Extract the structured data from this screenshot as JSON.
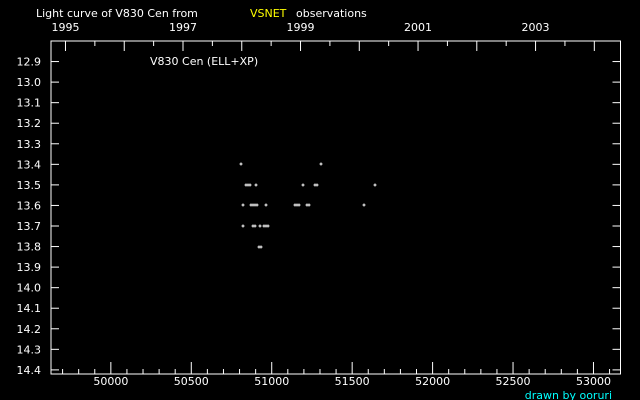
{
  "chart_data": {
    "type": "scatter",
    "title": {
      "prefix": "Light curve of V830 Cen from",
      "source": "VSNET",
      "suffix": "observations"
    },
    "annotation": "V830 Cen (ELL+XP)",
    "credit": "drawn by ooruri",
    "xlabel": "",
    "ylabel": "",
    "xlim": [
      49628,
      53168
    ],
    "ylim": [
      12.8,
      14.42
    ],
    "y_inverted": true,
    "x_ticks": [
      50000,
      50500,
      51000,
      51500,
      52000,
      52500,
      53000
    ],
    "x_tick_labels": [
      "50000",
      "50500",
      "51000",
      "51500",
      "52000",
      "52500",
      "53000"
    ],
    "top_year_labels": [
      "1995",
      "1997",
      "1999",
      "2001",
      "2003"
    ],
    "y_ticks": [
      12.9,
      13.0,
      13.1,
      13.2,
      13.3,
      13.4,
      13.5,
      13.6,
      13.7,
      13.8,
      13.9,
      14.0,
      14.1,
      14.2,
      14.3,
      14.4
    ],
    "y_tick_labels": [
      "12.9",
      "13.0",
      "13.1",
      "13.2",
      "13.3",
      "13.4",
      "13.5",
      "13.6",
      "13.7",
      "13.8",
      "13.9",
      "14.0",
      "14.1",
      "14.2",
      "14.3",
      "14.4"
    ],
    "grid": false,
    "colors": {
      "background": "#000000",
      "points": "#ffffff",
      "source": "#ffff00",
      "credit": "#00ffff"
    },
    "points": [
      [
        50811,
        13.4
      ],
      [
        51307,
        13.4
      ],
      [
        50840,
        13.5
      ],
      [
        50852,
        13.5
      ],
      [
        50865,
        13.5
      ],
      [
        50904,
        13.5
      ],
      [
        51196,
        13.5
      ],
      [
        51270,
        13.5
      ],
      [
        51283,
        13.5
      ],
      [
        51643,
        13.5
      ],
      [
        50823,
        13.6
      ],
      [
        50869,
        13.6
      ],
      [
        50881,
        13.6
      ],
      [
        50894,
        13.6
      ],
      [
        50906,
        13.6
      ],
      [
        50966,
        13.6
      ],
      [
        51146,
        13.6
      ],
      [
        51158,
        13.6
      ],
      [
        51171,
        13.6
      ],
      [
        51220,
        13.6
      ],
      [
        51233,
        13.6
      ],
      [
        51575,
        13.6
      ],
      [
        50823,
        13.7
      ],
      [
        50885,
        13.7
      ],
      [
        50898,
        13.7
      ],
      [
        50929,
        13.7
      ],
      [
        50953,
        13.7
      ],
      [
        50966,
        13.7
      ],
      [
        50978,
        13.7
      ],
      [
        50922,
        13.8
      ],
      [
        50935,
        13.8
      ]
    ]
  }
}
